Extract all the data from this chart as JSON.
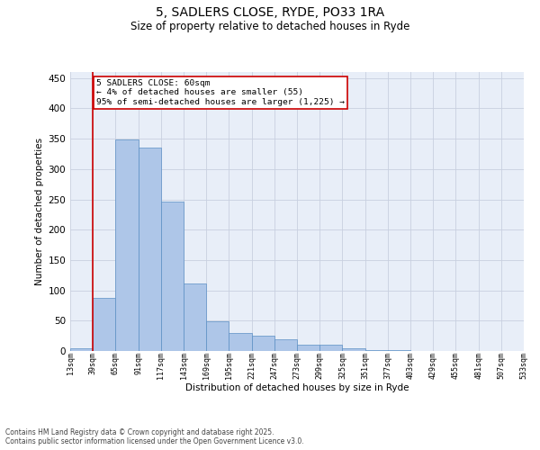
{
  "title_line1": "5, SADLERS CLOSE, RYDE, PO33 1RA",
  "title_line2": "Size of property relative to detached houses in Ryde",
  "xlabel": "Distribution of detached houses by size in Ryde",
  "ylabel": "Number of detached properties",
  "bar_values": [
    5,
    88,
    348,
    335,
    246,
    112,
    49,
    30,
    25,
    20,
    10,
    10,
    4,
    1,
    1,
    0,
    0,
    0,
    0,
    0
  ],
  "categories": [
    "13sqm",
    "39sqm",
    "65sqm",
    "91sqm",
    "117sqm",
    "143sqm",
    "169sqm",
    "195sqm",
    "221sqm",
    "247sqm",
    "273sqm",
    "299sqm",
    "325sqm",
    "351sqm",
    "377sqm",
    "403sqm",
    "429sqm",
    "455sqm",
    "481sqm",
    "507sqm",
    "533sqm"
  ],
  "bar_color": "#aec6e8",
  "bar_edge_color": "#5a8fc4",
  "vline_x": 1,
  "vline_color": "#cc0000",
  "annotation_text": "5 SADLERS CLOSE: 60sqm\n← 4% of detached houses are smaller (55)\n95% of semi-detached houses are larger (1,225) →",
  "annotation_box_color": "#cc0000",
  "ylim": [
    0,
    460
  ],
  "yticks": [
    0,
    50,
    100,
    150,
    200,
    250,
    300,
    350,
    400,
    450
  ],
  "footer_text": "Contains HM Land Registry data © Crown copyright and database right 2025.\nContains public sector information licensed under the Open Government Licence v3.0.",
  "bg_color": "#e8eef8",
  "fig_bg_color": "#ffffff"
}
